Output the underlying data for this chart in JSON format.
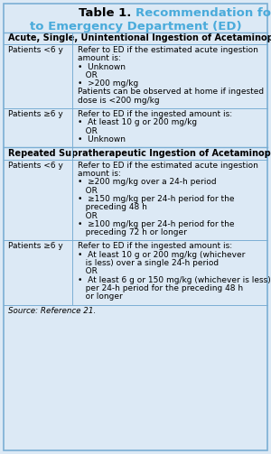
{
  "title_black": "Table 1. ",
  "title_blue_line1": "Recommendation for Referral",
  "title_blue_line2": "to Emergency Department (ED)",
  "background_color": "#dce9f5",
  "text_color": "#000000",
  "blue_color": "#4aabdb",
  "border_color": "#7bafd4",
  "divider_color": "#7bafd4",
  "source_text": "Source: Reference 21.",
  "section_headers": [
    "Acute, Single, Unintentional Ingestion of Acetaminophen",
    "Repeated Supratherapeutic Ingestion of Acetaminophen"
  ],
  "row1_patient": "Patients <6 y",
  "row1_content_lines": [
    "Refer to ED if the estimated acute ingestion",
    "amount is:",
    "•  Unknown",
    "   OR",
    "•  >200 mg/kg",
    "Patients can be observed at home if ingested",
    "dose is <200 mg/kg"
  ],
  "row2_patient": "Patients ≥6 y",
  "row2_content_lines": [
    "Refer to ED if the ingested amount is:",
    "•  At least 10 g or 200 mg/kg",
    "   OR",
    "•  Unknown"
  ],
  "row3_patient": "Patients <6 y",
  "row3_content_lines": [
    "Refer to ED if the estimated acute ingestion",
    "amount is:",
    "•  ≥200 mg/kg over a 24-h period",
    "   OR",
    "•  ≥150 mg/kg per 24-h period for the",
    "   preceding 48 h",
    "   OR",
    "•  ≥100 mg/kg per 24-h period for the",
    "   preceding 72 h or longer"
  ],
  "row4_patient": "Patients ≥6 y",
  "row4_content_lines": [
    "Refer to ED if the ingested amount is:",
    "•  At least 10 g or 200 mg/kg (whichever",
    "   is less) over a single 24-h period",
    "   OR",
    "•  At least 6 g or 150 mg/kg (whichever is less)",
    "   per 24-h period for the preceding 48 h",
    "   or longer"
  ],
  "fig_width": 3.0,
  "fig_height": 5.03,
  "dpi": 100
}
